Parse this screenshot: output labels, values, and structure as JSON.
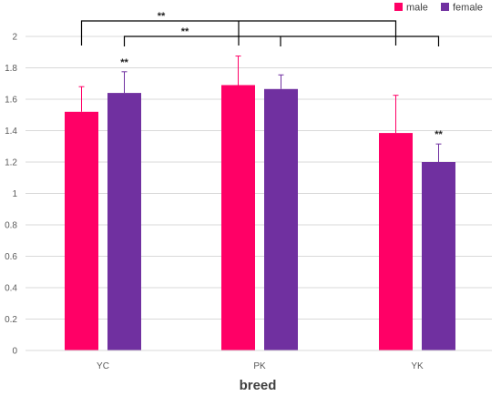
{
  "chart_data": {
    "type": "bar",
    "title": "",
    "xlabel": "breed",
    "ylabel": "",
    "ylim": [
      0,
      2
    ],
    "yticks": [
      0,
      0.2,
      0.4,
      0.6,
      0.8,
      1,
      1.2,
      1.4,
      1.6,
      1.8,
      2
    ],
    "ytick_labels": [
      "0",
      "0.2",
      "0.4",
      "0.6",
      "0.8",
      "1",
      "1.2",
      "1.4",
      "1.6",
      "1.8",
      "2"
    ],
    "grid": true,
    "legend_position": "top-right",
    "categories": [
      "YC",
      "PK",
      "YK"
    ],
    "series": [
      {
        "name": "male",
        "color": "#FF0066",
        "values": [
          1.52,
          1.69,
          1.385
        ],
        "errors": [
          0.16,
          0.185,
          0.24
        ]
      },
      {
        "name": "female",
        "color": "#7030A0",
        "values": [
          1.64,
          1.665,
          1.2
        ],
        "errors": [
          0.135,
          0.09,
          0.115
        ]
      }
    ],
    "bar_annotations": [
      {
        "category": "YC",
        "series": "female",
        "text": "**"
      },
      {
        "category": "YK",
        "series": "female",
        "text": "**"
      }
    ],
    "significance_brackets": [
      {
        "from": "YC",
        "to": "YK",
        "text": "**"
      },
      {
        "from": "YC",
        "to": "YK",
        "text": "**"
      }
    ]
  }
}
